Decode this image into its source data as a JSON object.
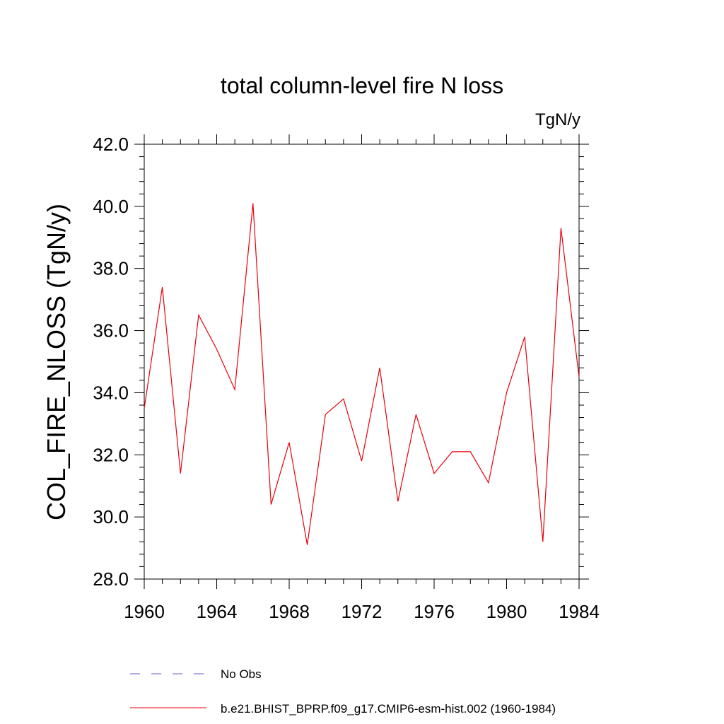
{
  "chart_data": {
    "type": "line",
    "title": "total column-level fire N loss",
    "units_label": "TgN/y",
    "ylabel": "COL_FIRE_NLOSS  (TgN/y)",
    "xlabel": "",
    "xlim": [
      1960,
      1984
    ],
    "ylim": [
      28.0,
      42.0
    ],
    "x_ticks": [
      1960,
      1964,
      1968,
      1972,
      1976,
      1980,
      1984
    ],
    "y_ticks": [
      "28.0",
      "30.0",
      "32.0",
      "34.0",
      "36.0",
      "38.0",
      "40.0",
      "42.0"
    ],
    "grid": false,
    "series": [
      {
        "name": "b.e21.BHIST_BPRP.f09_g17.CMIP6-esm-hist.002 (1960-1984)",
        "color": "#e8000b",
        "style": "solid",
        "x": [
          1960,
          1961,
          1962,
          1963,
          1964,
          1965,
          1966,
          1967,
          1968,
          1969,
          1970,
          1971,
          1972,
          1973,
          1974,
          1975,
          1976,
          1977,
          1978,
          1979,
          1980,
          1981,
          1982,
          1983,
          1984
        ],
        "values": [
          33.5,
          37.4,
          31.4,
          36.5,
          35.4,
          34.1,
          40.1,
          30.4,
          32.4,
          29.1,
          33.3,
          33.8,
          31.8,
          34.8,
          30.5,
          33.3,
          31.4,
          32.1,
          32.1,
          31.1,
          34.0,
          35.8,
          29.2,
          39.3,
          34.5
        ]
      },
      {
        "name": "No Obs",
        "color": "#6a5acd",
        "style": "dashed",
        "x": [],
        "values": []
      }
    ]
  }
}
